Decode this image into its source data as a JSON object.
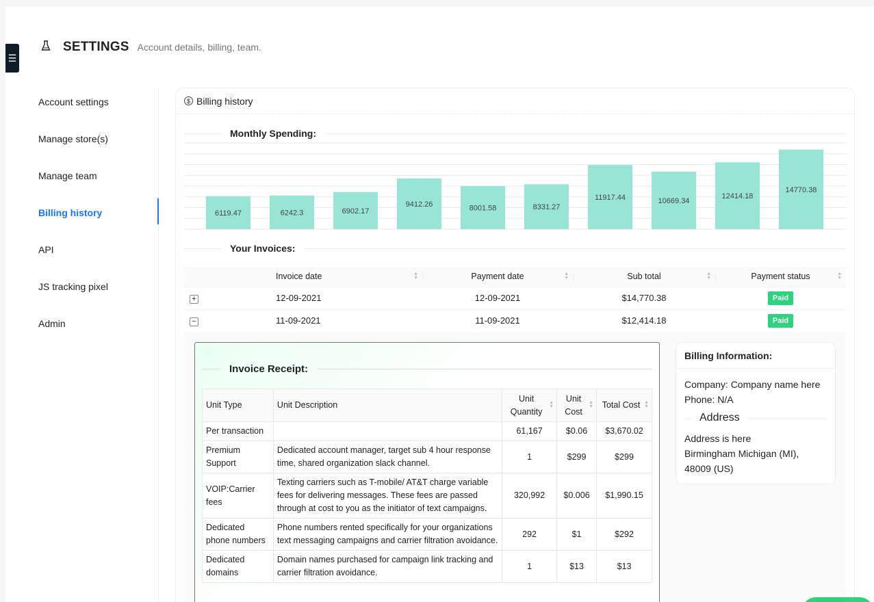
{
  "header": {
    "title": "SETTINGS",
    "subtitle": "Account details, billing, team."
  },
  "sidebar": {
    "items": [
      {
        "label": "Account settings"
      },
      {
        "label": "Manage store(s)"
      },
      {
        "label": "Manage team"
      },
      {
        "label": "Billing history"
      },
      {
        "label": "API"
      },
      {
        "label": "JS tracking pixel"
      },
      {
        "label": "Admin"
      }
    ],
    "active": "Billing history"
  },
  "billing": {
    "card_title": "Billing history",
    "spending_title": "Monthly Spending:",
    "invoices_title": "Your Invoices:"
  },
  "chart_data": {
    "type": "bar",
    "categories": [
      "",
      "",
      "",
      "",
      "",
      "",
      "",
      "",
      "",
      ""
    ],
    "values": [
      6119.47,
      6242.3,
      6902.17,
      9412.26,
      8001.58,
      8331.27,
      11917.44,
      10669.34,
      12414.18,
      14770.38
    ],
    "data_labels": [
      "6119.47",
      "6242.3",
      "6902.17",
      "9412.26",
      "8001.58",
      "8331.27",
      "11917.44",
      "10669.34",
      "12414.18",
      "14770.38"
    ],
    "ylim": [
      0,
      16000
    ],
    "grid": true,
    "bar_color": "#98e5d6"
  },
  "invoices": {
    "columns": [
      "Invoice date",
      "Payment date",
      "Sub total",
      "Payment status"
    ],
    "rows": [
      {
        "toggle": "+",
        "invoice_date": "12-09-2021",
        "payment_date": "12-09-2021",
        "sub_total": "$14,770.38",
        "status": "Paid"
      },
      {
        "toggle": "−",
        "invoice_date": "11-09-2021",
        "payment_date": "11-09-2021",
        "sub_total": "$12,414.18",
        "status": "Paid"
      }
    ]
  },
  "receipt": {
    "title": "Invoice Receipt:",
    "columns": [
      "Unit Type",
      "Unit Description",
      "Unit Quantity",
      "Unit Cost",
      "Total Cost"
    ],
    "rows": [
      {
        "type": "Per transaction",
        "desc": "",
        "qty": "61,167",
        "cost": "$0.06",
        "total": "$3,670.02"
      },
      {
        "type": "Premium Support",
        "desc": "Dedicated account manager, target sub 4 hour response time, shared organization slack channel.",
        "qty": "1",
        "cost": "$299",
        "total": "$299"
      },
      {
        "type": "VOIP:Carrier fees",
        "desc": "Texting carriers such as T-mobile/ AT&T charge variable fees for delivering messages. These fees are passed through at cost to you as the initiator of text campaigns.",
        "qty": "320,992",
        "cost": "$0.006",
        "total": "$1,990.15"
      },
      {
        "type": "Dedicated phone numbers",
        "desc": "Phone numbers rented specifically for your organizations text messaging campaigns and carrier filtration avoidance.",
        "qty": "292",
        "cost": "$1",
        "total": "$292"
      },
      {
        "type": "Dedicated domains",
        "desc": "Domain names purchased for campaign link tracking and carrier filtration avoidance.",
        "qty": "1",
        "cost": "$13",
        "total": "$13"
      }
    ]
  },
  "billing_info": {
    "title": "Billing Information:",
    "company": "Company: Company name here",
    "phone": "Phone: N/A",
    "address_title": "Address",
    "address_line1": "Address is here",
    "address_line2": "Birmingham Michigan (MI),",
    "address_line3": "48009 (US)"
  },
  "icons": {
    "menu": "menu-icon",
    "flask": "flask-icon",
    "dollar": "dollar-circle-icon",
    "sort": "sort-icon"
  },
  "colors": {
    "accent": "#1677ff",
    "paid": "#2ed37e",
    "bar": "#98e5d6",
    "menu_toggle": "#0d1b2a"
  }
}
